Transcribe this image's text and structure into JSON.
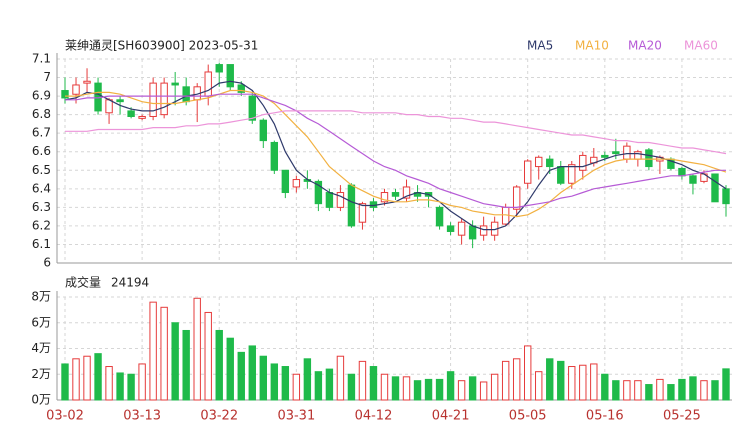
{
  "chart_data": {
    "type": "candlestick",
    "title": "莱绅通灵[SH603900] 2023-05-31",
    "up_color": "#e63b3b",
    "down_color": "#1fba4a",
    "grid": true,
    "categories": [
      "03-02",
      null,
      null,
      null,
      null,
      null,
      null,
      "03-13",
      null,
      null,
      null,
      null,
      null,
      null,
      "03-22",
      null,
      null,
      null,
      null,
      null,
      null,
      "03-31",
      null,
      null,
      null,
      null,
      null,
      null,
      "04-12",
      null,
      null,
      null,
      null,
      null,
      null,
      "04-21",
      null,
      null,
      null,
      null,
      null,
      null,
      "05-05",
      null,
      null,
      null,
      null,
      null,
      null,
      "05-16",
      null,
      null,
      null,
      null,
      null,
      null,
      "05-25",
      null,
      null,
      null,
      null
    ],
    "open": [
      6.93,
      6.91,
      6.97,
      6.97,
      6.81,
      6.88,
      6.82,
      6.78,
      6.79,
      6.8,
      6.97,
      6.95,
      6.88,
      6.9,
      7.07,
      7.07,
      6.96,
      6.9,
      6.77,
      6.65,
      6.5,
      6.41,
      6.45,
      6.44,
      6.38,
      6.3,
      6.42,
      6.22,
      6.33,
      6.33,
      6.38,
      6.35,
      6.38,
      6.38,
      6.3,
      6.2,
      6.15,
      6.2,
      6.15,
      6.15,
      6.21,
      6.29,
      6.43,
      6.52,
      6.56,
      6.52,
      6.43,
      6.5,
      6.54,
      6.58,
      6.6,
      6.56,
      6.56,
      6.61,
      6.55,
      6.56,
      6.51,
      6.47,
      6.44,
      6.48,
      6.4
    ],
    "high": [
      7.0,
      7.0,
      7.05,
      7.0,
      6.89,
      6.9,
      6.84,
      6.8,
      7.0,
      7.0,
      7.03,
      7.0,
      6.97,
      7.07,
      7.08,
      7.07,
      6.98,
      6.92,
      6.78,
      6.66,
      6.5,
      6.47,
      6.5,
      6.45,
      6.4,
      6.42,
      6.43,
      6.33,
      6.35,
      6.4,
      6.4,
      6.45,
      6.42,
      6.38,
      6.31,
      6.22,
      6.24,
      6.23,
      6.25,
      6.25,
      6.32,
      6.42,
      6.56,
      6.58,
      6.58,
      6.55,
      6.55,
      6.6,
      6.62,
      6.6,
      6.67,
      6.65,
      6.61,
      6.62,
      6.58,
      6.57,
      6.52,
      6.48,
      6.5,
      6.48,
      6.42
    ],
    "low": [
      6.86,
      6.86,
      6.92,
      6.8,
      6.75,
      6.8,
      6.78,
      6.77,
      6.77,
      6.78,
      6.85,
      6.85,
      6.76,
      6.85,
      6.95,
      6.93,
      6.9,
      6.75,
      6.62,
      6.48,
      6.35,
      6.38,
      6.4,
      6.28,
      6.28,
      6.28,
      6.19,
      6.18,
      6.28,
      6.31,
      6.34,
      6.33,
      6.33,
      6.3,
      6.18,
      6.15,
      6.1,
      6.08,
      6.12,
      6.12,
      6.2,
      6.25,
      6.4,
      6.45,
      6.48,
      6.42,
      6.4,
      6.45,
      6.52,
      6.55,
      6.56,
      6.54,
      6.52,
      6.5,
      6.48,
      6.5,
      6.45,
      6.37,
      6.43,
      6.33,
      6.25
    ],
    "close": [
      6.89,
      6.96,
      6.98,
      6.82,
      6.88,
      6.87,
      6.79,
      6.79,
      6.97,
      6.97,
      6.96,
      6.87,
      6.95,
      7.03,
      7.03,
      6.95,
      6.92,
      6.77,
      6.66,
      6.5,
      6.38,
      6.45,
      6.44,
      6.32,
      6.3,
      6.38,
      6.2,
      6.32,
      6.3,
      6.38,
      6.36,
      6.41,
      6.36,
      6.36,
      6.2,
      6.17,
      6.22,
      6.13,
      6.2,
      6.22,
      6.3,
      6.41,
      6.55,
      6.57,
      6.52,
      6.43,
      6.53,
      6.58,
      6.57,
      6.57,
      6.59,
      6.63,
      6.6,
      6.52,
      6.57,
      6.51,
      6.47,
      6.43,
      6.48,
      6.33,
      6.32
    ],
    "ylim": [
      6,
      7.1
    ],
    "yticks": [
      6,
      6.1,
      6.2,
      6.3,
      6.4,
      6.5,
      6.6,
      6.7,
      6.8,
      6.9,
      7,
      7.1
    ],
    "series": [
      {
        "name": "MA5",
        "color": "#2f3a6b",
        "values": [
          6.88,
          6.89,
          6.92,
          6.91,
          6.88,
          6.85,
          6.83,
          6.82,
          6.82,
          6.84,
          6.87,
          6.9,
          6.91,
          6.93,
          6.97,
          6.98,
          6.97,
          6.93,
          6.85,
          6.75,
          6.6,
          6.5,
          6.45,
          6.42,
          6.38,
          6.36,
          6.33,
          6.31,
          6.31,
          6.32,
          6.33,
          6.36,
          6.38,
          6.37,
          6.33,
          6.28,
          6.24,
          6.2,
          6.18,
          6.18,
          6.2,
          6.26,
          6.33,
          6.42,
          6.5,
          6.52,
          6.52,
          6.52,
          6.54,
          6.56,
          6.58,
          6.59,
          6.59,
          6.58,
          6.57,
          6.55,
          6.53,
          6.5,
          6.48,
          6.44,
          6.4
        ]
      },
      {
        "name": "MA10",
        "color": "#f2b141",
        "values": [
          6.9,
          6.9,
          6.91,
          6.92,
          6.92,
          6.91,
          6.89,
          6.87,
          6.86,
          6.86,
          6.86,
          6.87,
          6.88,
          6.89,
          6.91,
          6.93,
          6.93,
          6.92,
          6.9,
          6.86,
          6.8,
          6.74,
          6.68,
          6.6,
          6.52,
          6.47,
          6.42,
          6.39,
          6.36,
          6.34,
          6.33,
          6.33,
          6.34,
          6.34,
          6.33,
          6.31,
          6.3,
          6.28,
          6.27,
          6.26,
          6.26,
          6.25,
          6.26,
          6.29,
          6.33,
          6.38,
          6.42,
          6.46,
          6.5,
          6.53,
          6.55,
          6.56,
          6.56,
          6.56,
          6.56,
          6.56,
          6.55,
          6.54,
          6.53,
          6.51,
          6.49
        ]
      },
      {
        "name": "MA20",
        "color": "#b65bd6",
        "values": [
          6.88,
          6.88,
          6.89,
          6.89,
          6.9,
          6.9,
          6.9,
          6.9,
          6.9,
          6.9,
          6.9,
          6.9,
          6.9,
          6.9,
          6.91,
          6.91,
          6.91,
          6.91,
          6.89,
          6.87,
          6.85,
          6.82,
          6.78,
          6.75,
          6.71,
          6.67,
          6.63,
          6.59,
          6.55,
          6.52,
          6.5,
          6.47,
          6.45,
          6.43,
          6.4,
          6.38,
          6.36,
          6.34,
          6.32,
          6.31,
          6.3,
          6.3,
          6.31,
          6.32,
          6.33,
          6.35,
          6.36,
          6.38,
          6.4,
          6.41,
          6.42,
          6.43,
          6.44,
          6.45,
          6.46,
          6.47,
          6.47,
          6.48,
          6.49,
          6.5,
          6.5
        ]
      },
      {
        "name": "MA60",
        "color": "#ec94d9",
        "values": [
          6.71,
          6.71,
          6.71,
          6.72,
          6.72,
          6.72,
          6.72,
          6.72,
          6.73,
          6.73,
          6.73,
          6.74,
          6.74,
          6.75,
          6.75,
          6.76,
          6.77,
          6.78,
          6.8,
          6.81,
          6.82,
          6.82,
          6.82,
          6.82,
          6.82,
          6.82,
          6.82,
          6.81,
          6.81,
          6.81,
          6.81,
          6.8,
          6.8,
          6.79,
          6.79,
          6.78,
          6.78,
          6.77,
          6.76,
          6.76,
          6.75,
          6.74,
          6.73,
          6.72,
          6.71,
          6.7,
          6.69,
          6.69,
          6.68,
          6.67,
          6.66,
          6.66,
          6.65,
          6.65,
          6.64,
          6.63,
          6.62,
          6.62,
          6.61,
          6.6,
          6.59
        ]
      }
    ],
    "volume": {
      "title": "成交量",
      "values": [
        28000,
        32000,
        34000,
        36000,
        26000,
        21000,
        20000,
        28000,
        76000,
        72000,
        60000,
        54000,
        79000,
        68000,
        54000,
        48000,
        37000,
        42000,
        34000,
        28000,
        26000,
        20000,
        32000,
        22000,
        24000,
        34000,
        20000,
        30000,
        26000,
        20000,
        18000,
        18000,
        15000,
        16000,
        16000,
        22000,
        15000,
        18000,
        14000,
        20000,
        30000,
        32000,
        42000,
        22000,
        32000,
        30000,
        26000,
        27000,
        28000,
        20000,
        15000,
        15000,
        15000,
        12000,
        16000,
        12000,
        16000,
        18000,
        15000,
        15000,
        24194
      ],
      "ylim": [
        0,
        80000
      ],
      "yticks": [
        {
          "value": 0,
          "label": "0万"
        },
        {
          "value": 20000,
          "label": "2万"
        },
        {
          "value": 40000,
          "label": "4万"
        },
        {
          "value": 60000,
          "label": "6万"
        },
        {
          "value": 80000,
          "label": "8万"
        }
      ]
    }
  }
}
